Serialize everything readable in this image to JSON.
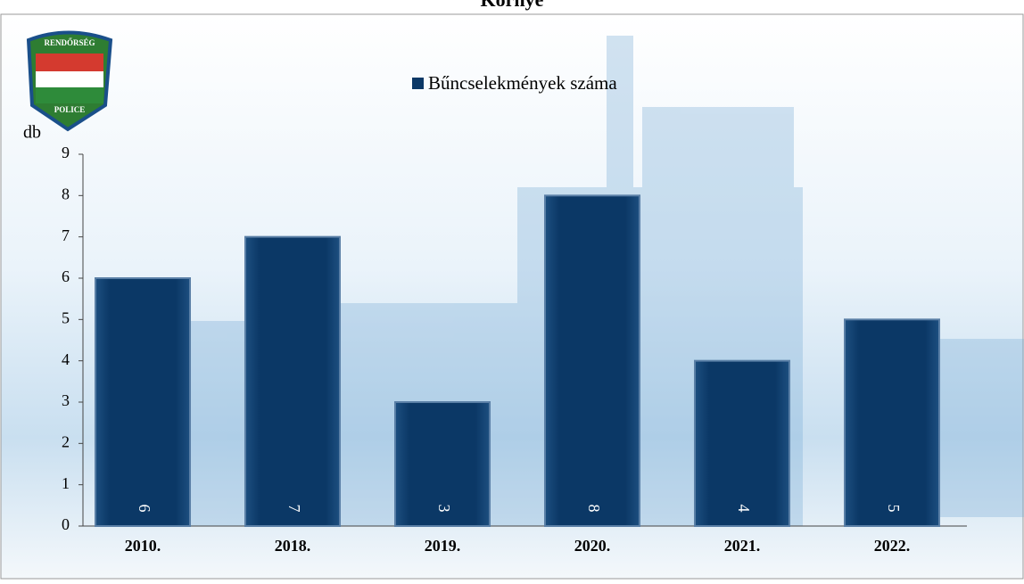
{
  "chart_data": {
    "type": "bar",
    "title": "Környe",
    "logo": {
      "top": "RENDŐRSÉG",
      "bottom": "POLICE"
    },
    "y_label": "db",
    "categories": [
      "2010.",
      "2018.",
      "2019.",
      "2020.",
      "2021.",
      "2022."
    ],
    "series": [
      {
        "name": "Bűncselekmények száma",
        "color": "#0b3866",
        "values": [
          6,
          7,
          3,
          8,
          4,
          5
        ]
      }
    ],
    "ylim": [
      0,
      9
    ],
    "yticks": [
      0,
      1,
      2,
      3,
      4,
      5,
      6,
      7,
      8,
      9
    ]
  }
}
